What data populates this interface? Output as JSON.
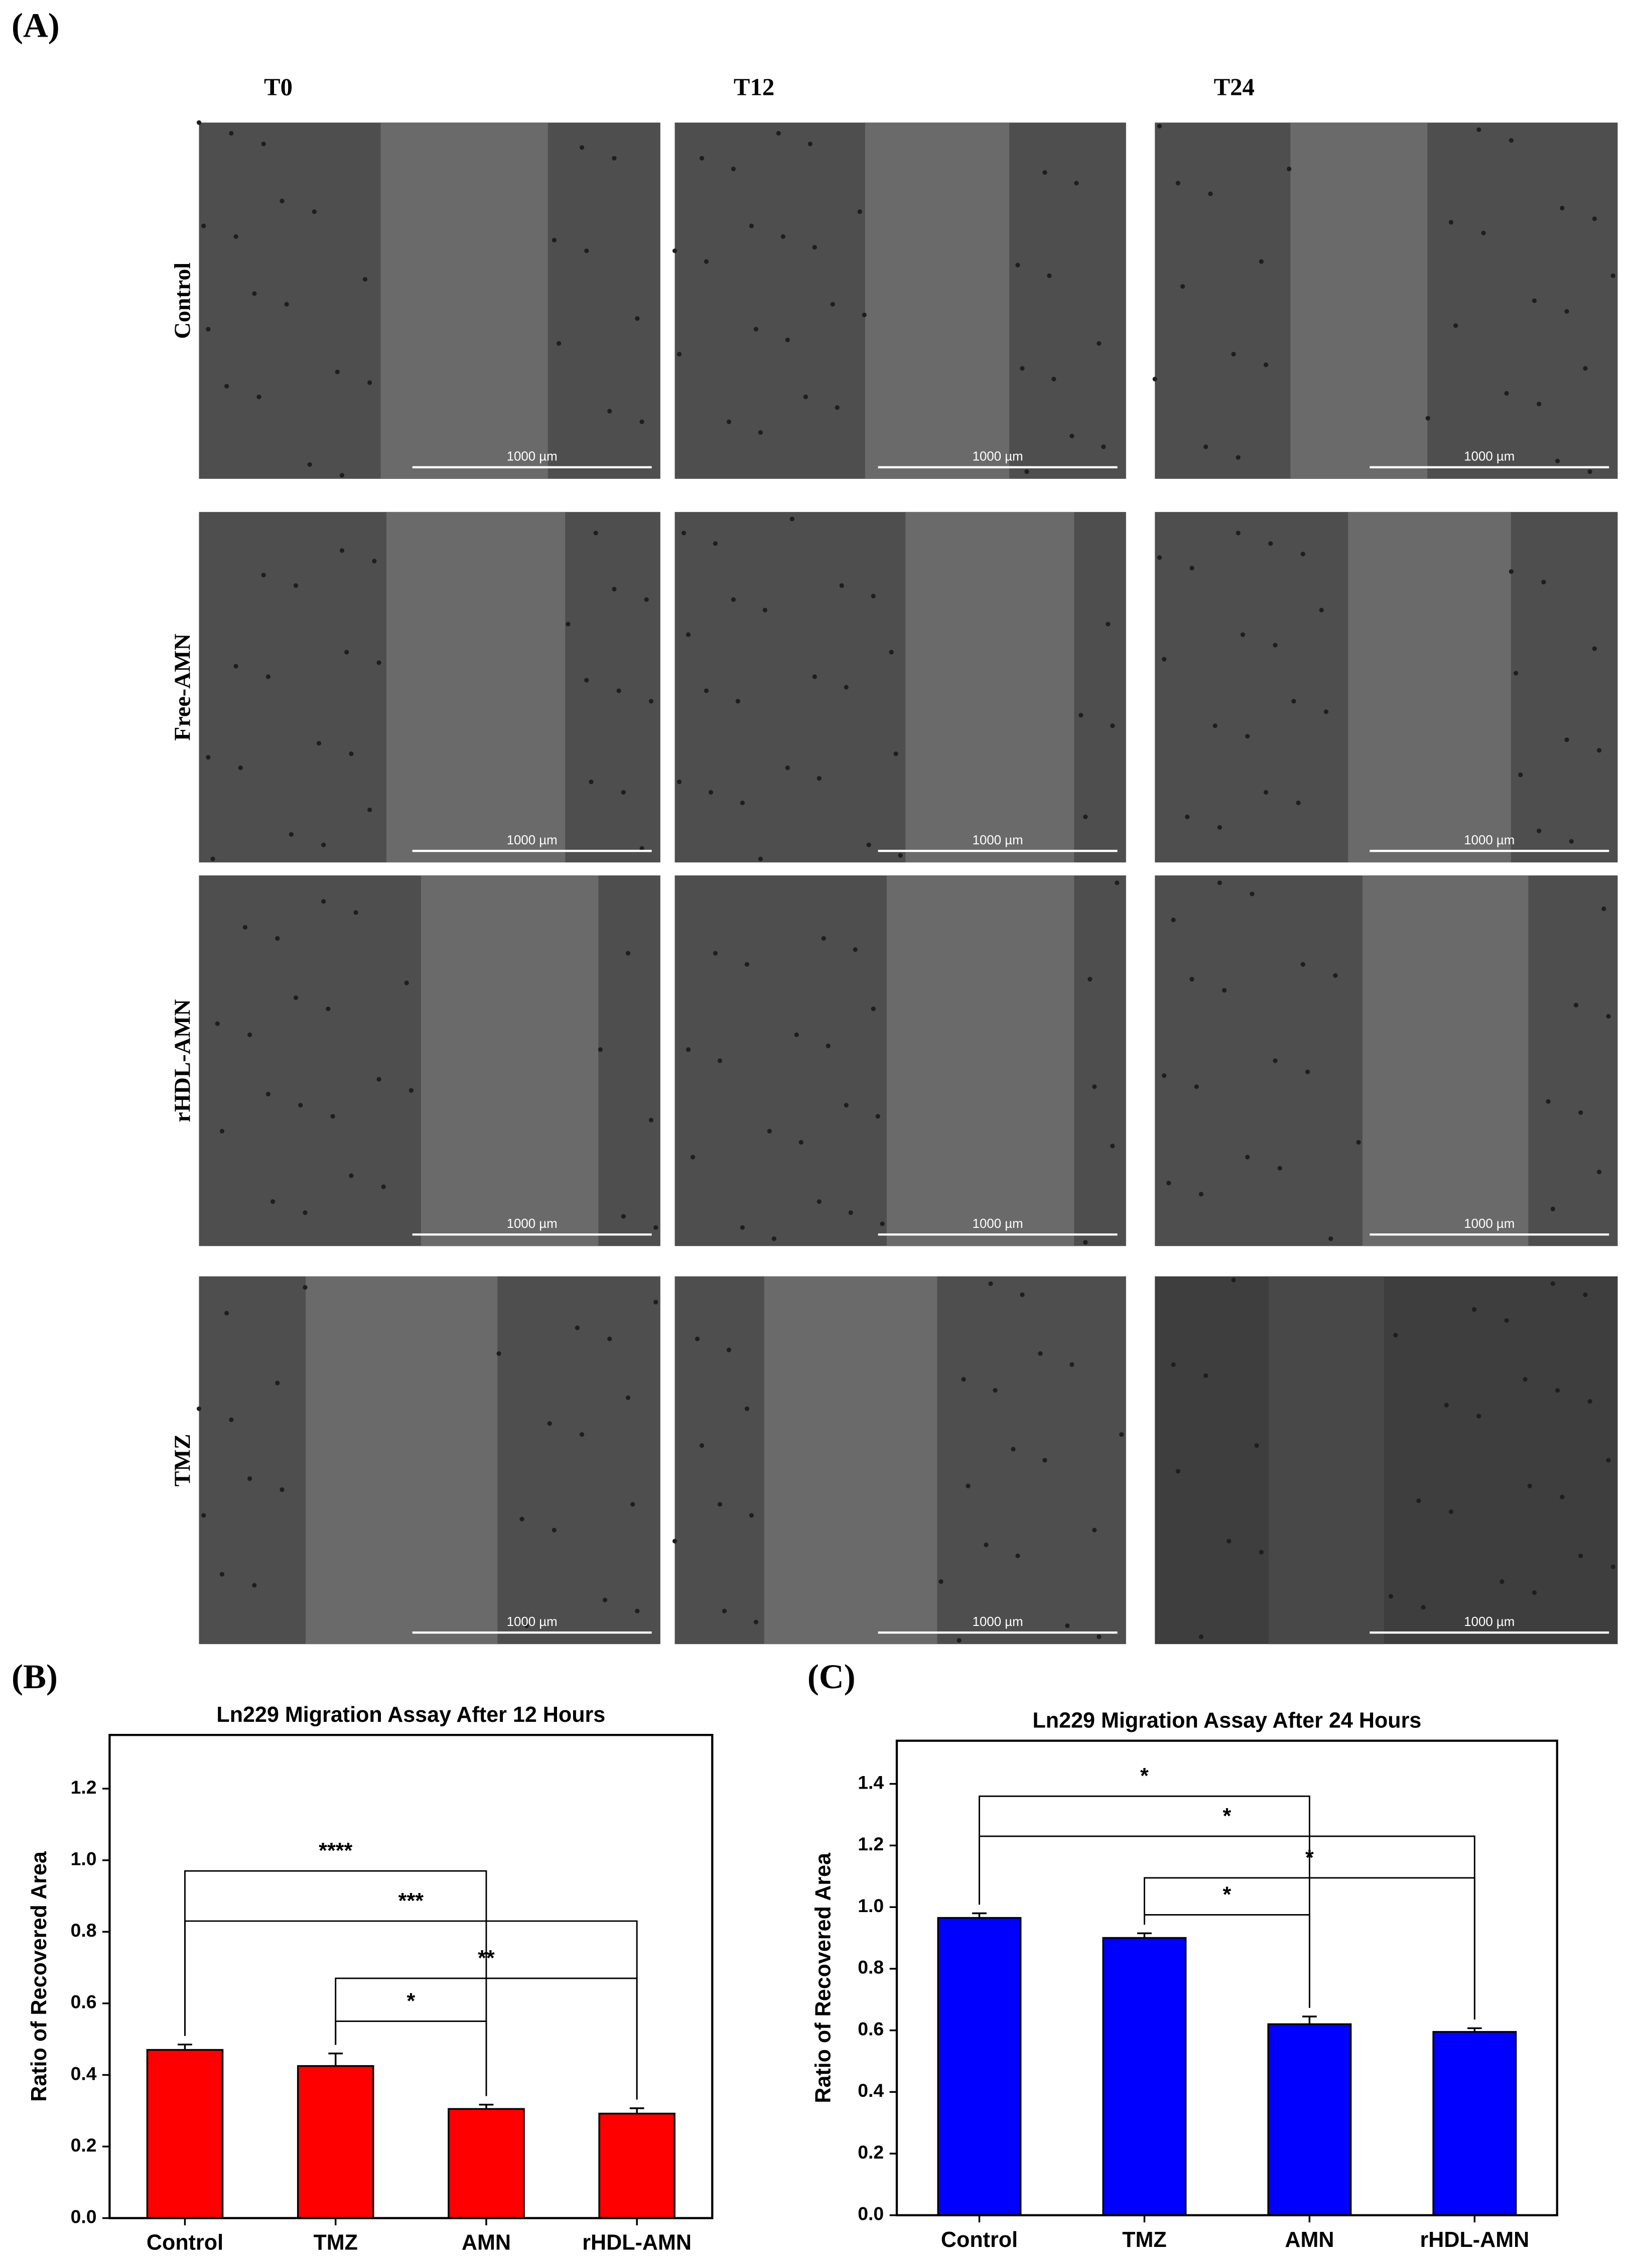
{
  "panel_a": {
    "panel_label": "(A)",
    "columns": [
      "T0",
      "T12",
      "T24"
    ],
    "rows": [
      "Control",
      "Free-AMN",
      "rHDL-AMN",
      "TMZ"
    ],
    "scale_bar_label": "1000 µm"
  },
  "chart_data": [
    {
      "type": "bar",
      "panel_label": "(B)",
      "title": "Ln229 Migration Assay After 12 Hours",
      "y_label": "Ratio of Recovered Area",
      "categories": [
        "Control",
        "TMZ",
        "AMN",
        "rHDL-AMN"
      ],
      "values": [
        0.47,
        0.425,
        0.305,
        0.292
      ],
      "errors": [
        0.015,
        0.035,
        0.012,
        0.015
      ],
      "color": "#ff0000",
      "ylim": [
        0,
        1.35
      ],
      "yticks": [
        {
          "value": 0,
          "label": "0.0"
        },
        0.2,
        0.4,
        0.6,
        0.8,
        {
          "value": 1,
          "label": "1.0"
        },
        1.2
      ],
      "brackets": [
        {
          "from": "Control",
          "to": "AMN",
          "y": 0.97,
          "label": "****"
        },
        {
          "from": "Control",
          "to": "rHDL-AMN",
          "y": 0.83,
          "label": "***"
        },
        {
          "from": "TMZ",
          "to": "rHDL-AMN",
          "y": 0.67,
          "label": "**"
        },
        {
          "from": "TMZ",
          "to": "AMN",
          "y": 0.55,
          "label": "*"
        }
      ]
    },
    {
      "type": "bar",
      "panel_label": "(C)",
      "title": "Ln229 Migration Assay After 24 Hours",
      "y_label": "Ratio of Recovered Area",
      "categories": [
        "Control",
        "TMZ",
        "AMN",
        "rHDL-AMN"
      ],
      "values": [
        0.965,
        0.9,
        0.62,
        0.595
      ],
      "errors": [
        0.015,
        0.015,
        0.025,
        0.012
      ],
      "color": "#0000ff",
      "ylim": [
        0,
        1.54
      ],
      "yticks": [
        {
          "value": 0,
          "label": "0.0"
        },
        0.2,
        0.4,
        0.6,
        0.8,
        {
          "value": 1,
          "label": "1.0"
        },
        1.2,
        1.4
      ],
      "brackets": [
        {
          "from": "Control",
          "to": "AMN",
          "y": 1.36,
          "label": "*"
        },
        {
          "from": "Control",
          "to": "rHDL-AMN",
          "y": 1.23,
          "label": "*"
        },
        {
          "from": "TMZ",
          "to": "rHDL-AMN",
          "y": 1.095,
          "label": "*"
        },
        {
          "from": "TMZ",
          "to": "AMN",
          "y": 0.975,
          "label": "*"
        }
      ]
    }
  ]
}
